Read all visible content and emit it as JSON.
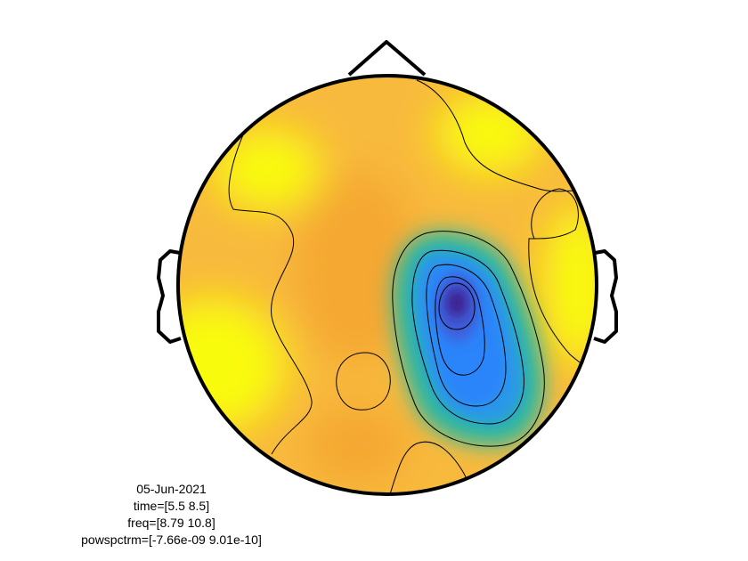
{
  "chart_data": {
    "type": "heatmap",
    "title": "",
    "xlabel": "",
    "ylabel": "",
    "colormap": "parula",
    "colorbar": false,
    "grid": false,
    "parameter": "powspctrm",
    "range": [
      -7.66e-09,
      9.01e-10
    ],
    "contour_levels": 6,
    "annotation": [
      "05-Jun-2021",
      "time=[5.5 8.5]",
      "freq=[8.79 10.8]",
      "powspctrm=[-7.66e-09 9.01e-10]"
    ],
    "features": [
      {
        "kind": "minimum",
        "region": "right centro-parietal",
        "value": -7.66e-09
      },
      {
        "kind": "maximum",
        "region": "left temporal / right temporal edge",
        "value": 9.01e-10
      }
    ]
  },
  "colors": {
    "background": "#FFFFFF",
    "outline": "#000000",
    "contour": "#000000",
    "max": "#F9FB0E",
    "baseline": "#F8BA3D",
    "mid": "#2CB7A3",
    "low": "#2A84FA",
    "min": "#3E1D8A"
  }
}
